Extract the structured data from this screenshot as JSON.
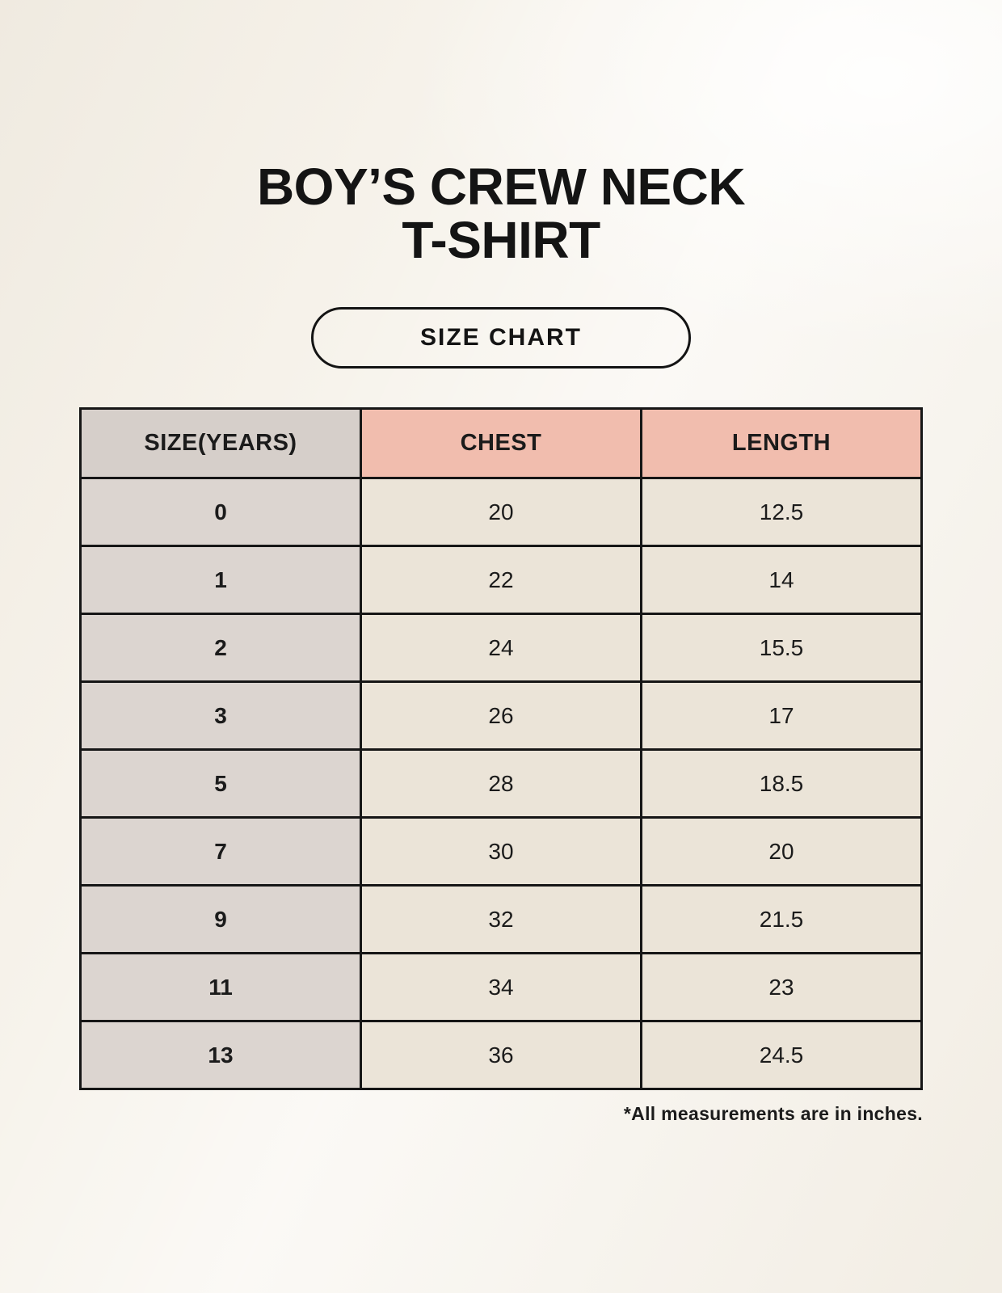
{
  "page": {
    "title_line1": "BOY’S CREW NECK",
    "title_line2": "T-SHIRT",
    "badge_label": "SIZE CHART",
    "footnote": "*All measurements are in inches."
  },
  "colors": {
    "background": "#f6f2ea",
    "header_salmon": "#f1bdae",
    "size_column_gray": "#dcd5d0",
    "value_cell_cream": "#ebe4d8",
    "border": "#161616",
    "text": "#1b1b1b"
  },
  "chart_data": {
    "type": "table",
    "title": "BOY’S CREW NECK T-SHIRT — SIZE CHART",
    "columns": [
      "SIZE(YEARS)",
      "CHEST",
      "LENGTH"
    ],
    "rows": [
      [
        "0",
        "20",
        "12.5"
      ],
      [
        "1",
        "22",
        "14"
      ],
      [
        "2",
        "24",
        "15.5"
      ],
      [
        "3",
        "26",
        "17"
      ],
      [
        "5",
        "28",
        "18.5"
      ],
      [
        "7",
        "30",
        "20"
      ],
      [
        "9",
        "32",
        "21.5"
      ],
      [
        "11",
        "34",
        "23"
      ],
      [
        "13",
        "36",
        "24.5"
      ]
    ],
    "units_note": "*All measurements are in inches.",
    "layout": {
      "grid": true,
      "header_fill": "salmon",
      "first_column_fill": "gray"
    }
  }
}
